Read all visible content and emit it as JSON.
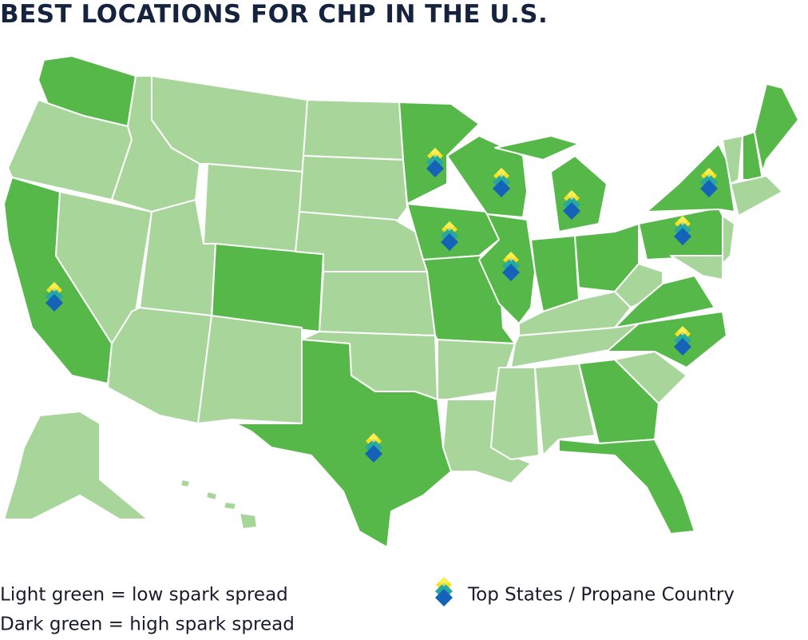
{
  "title": "BEST LOCATIONS FOR CHP IN THE U.S.",
  "legend": {
    "light": "Light green = low spark spread",
    "dark": "Dark green = high spark spread",
    "marker": "Top States / Propane Country"
  }
}
